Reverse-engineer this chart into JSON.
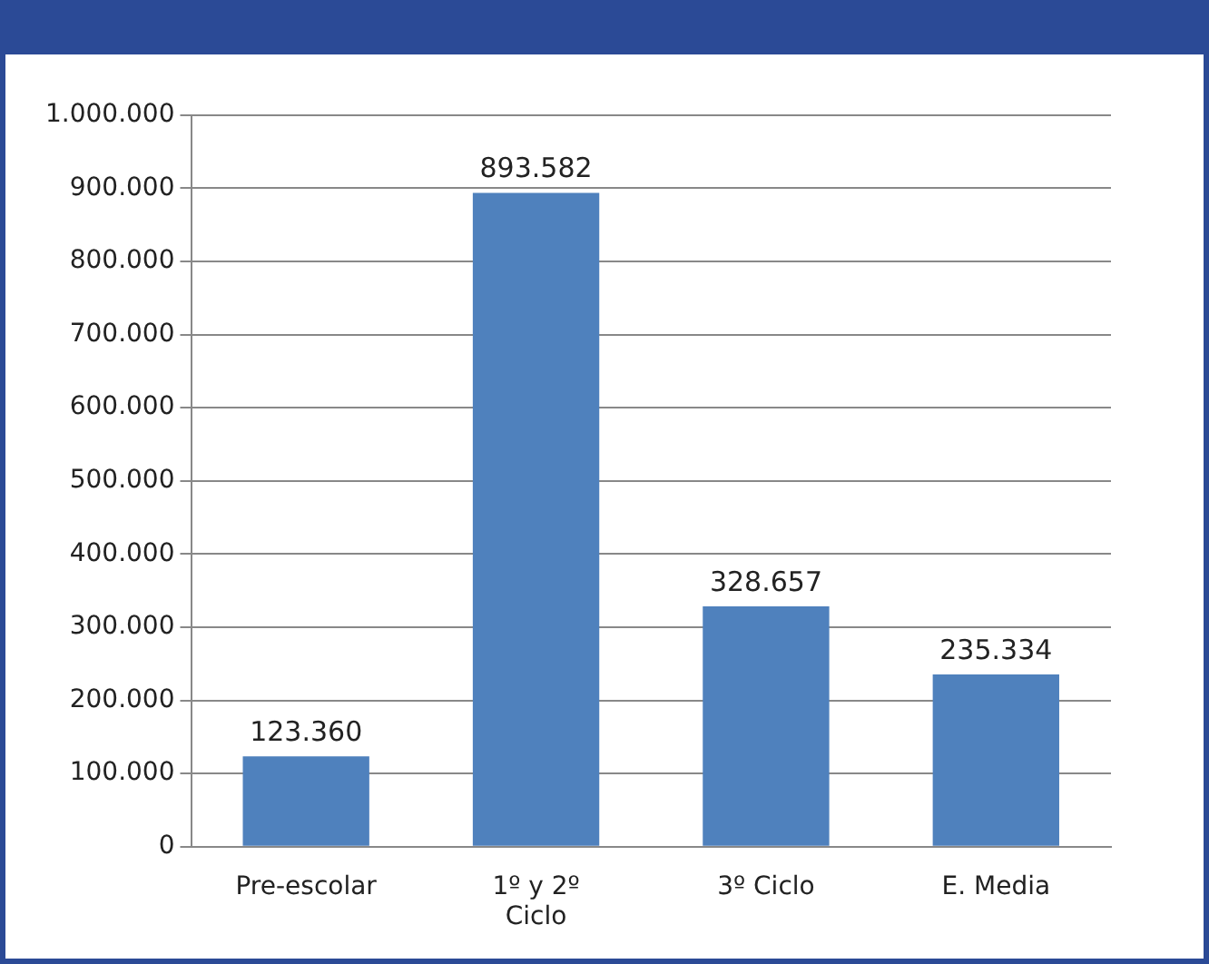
{
  "chart_data": {
    "type": "bar",
    "categories": [
      "Pre-escolar",
      "1º y 2º Ciclo",
      "3º Ciclo",
      "E. Media"
    ],
    "values": [
      123360,
      893582,
      328657,
      235334
    ],
    "color": "#4f81bd",
    "value_labels": [
      "123.360",
      "893.582",
      "328.657",
      "235.334"
    ],
    "ylim": [
      0,
      1000000
    ],
    "yticks": [
      {
        "value": 0,
        "label": "0"
      },
      {
        "value": 100000,
        "label": "100.000"
      },
      {
        "value": 200000,
        "label": "200.000"
      },
      {
        "value": 300000,
        "label": "300.000"
      },
      {
        "value": 400000,
        "label": "400.000"
      },
      {
        "value": 500000,
        "label": "500.000"
      },
      {
        "value": 600000,
        "label": "600.000"
      },
      {
        "value": 700000,
        "label": "700.000"
      },
      {
        "value": 800000,
        "label": "800.000"
      },
      {
        "value": 900000,
        "label": "900.000"
      },
      {
        "value": 1000000,
        "label": "1.000.000"
      }
    ],
    "grid": "y",
    "legend": false
  }
}
